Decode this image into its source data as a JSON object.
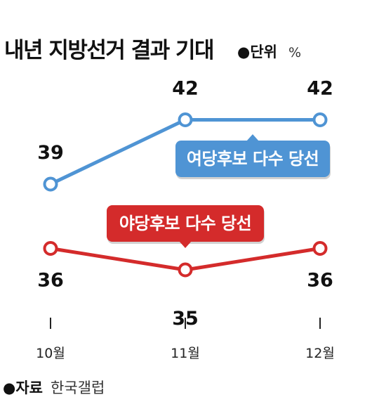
{
  "title": "내년 지방선거 결과 기대",
  "unit_label": "●단위",
  "unit_value": "%",
  "source_label": "●자료",
  "source_value": "한국갤럽",
  "colors": {
    "ruling": "#4f94d4",
    "opposition": "#d42b2b",
    "text": "#111111"
  },
  "chart_data": {
    "type": "line",
    "categories": [
      "10월",
      "11월",
      "12월"
    ],
    "series": [
      {
        "name": "여당후보 다수 당선",
        "values": [
          39,
          42,
          42
        ],
        "color": "#4f94d4"
      },
      {
        "name": "야당후보 다수 당선",
        "values": [
          36,
          35,
          36
        ],
        "color": "#d42b2b"
      }
    ],
    "title": "내년 지방선거 결과 기대",
    "xlabel": "",
    "ylabel": "",
    "unit": "%",
    "grid": false,
    "legend": "inline callouts"
  }
}
